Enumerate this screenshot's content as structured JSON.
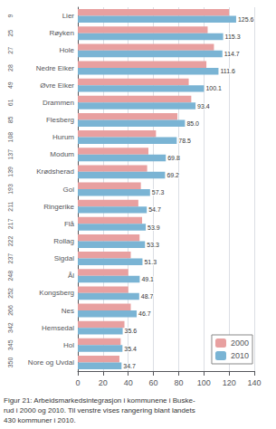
{
  "chart_data": {
    "type": "bar",
    "orientation": "horizontal",
    "categories": [
      "Lier",
      "Røyken",
      "Hole",
      "Nedre Eiker",
      "Øvre Eiker",
      "Drammen",
      "Flesberg",
      "Hurum",
      "Modum",
      "Krødsherad",
      "Gol",
      "Ringerike",
      "Flå",
      "Rollag",
      "Sigdal",
      "Ål",
      "Kongsberg",
      "Nes",
      "Hemsedal",
      "Hol",
      "Nore og Uvdal"
    ],
    "ranks": [
      "9",
      "25",
      "27",
      "28",
      "49",
      "61",
      "85",
      "108",
      "137",
      "139",
      "193",
      "211",
      "217",
      "222",
      "237",
      "248",
      "252",
      "266",
      "342",
      "345",
      "350"
    ],
    "series": [
      {
        "name": "2000",
        "color": "#e8a0a0",
        "values": [
          120.0,
          103.0,
          108.0,
          102.0,
          88.0,
          90.0,
          79.0,
          62.0,
          56.0,
          55.0,
          50.0,
          48.0,
          51.0,
          49.0,
          42.0,
          40.0,
          40.0,
          42.0,
          37.0,
          34.0,
          33.0
        ]
      },
      {
        "name": "2010",
        "color": "#7ab4d4",
        "data_labels": true,
        "values": [
          125.6,
          115.3,
          114.7,
          111.6,
          100.1,
          93.4,
          85.0,
          78.5,
          69.8,
          69.2,
          57.3,
          54.7,
          53.9,
          53.3,
          51.3,
          49.1,
          48.7,
          46.7,
          35.6,
          35.4,
          34.7
        ],
        "value_labels": [
          "125.6",
          "115.3",
          "114.7",
          "111.6",
          "100.1",
          "93.4",
          "85.0",
          "78.5",
          "69.8",
          "69.2",
          "57.3",
          "54.7",
          "53.9",
          "53.3",
          "51.3",
          "49.1",
          "48.7",
          "46.7",
          "35.6",
          "35.4",
          "34.7"
        ]
      }
    ],
    "xlim": [
      0,
      140
    ],
    "xticks": [
      0,
      20,
      40,
      60,
      80,
      100,
      120,
      140
    ],
    "grid": true,
    "legend": "lower right",
    "caption": "Figur 21: Arbeidsmarkedsintegrasjon i kommunene i Buske-\nrud i 2000 og 2010. Til venstre vises rangering blant landets\n430 kommuner i 2010."
  }
}
